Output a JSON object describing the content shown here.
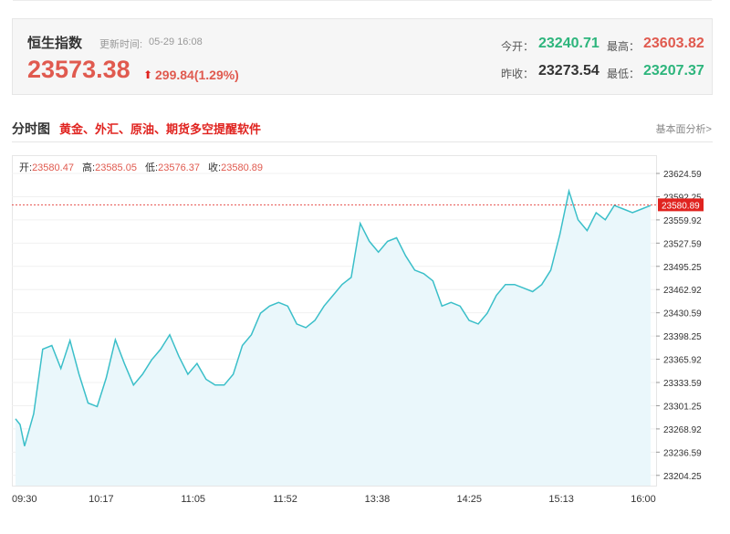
{
  "index": {
    "name": "恒生指数",
    "update_label": "更新时间:",
    "update_time": "05-29 16:08",
    "price": "23573.38",
    "change": "299.84(1.29%)",
    "stats": {
      "open_label": "今开：",
      "open": "23240.71",
      "high_label": "最高：",
      "high": "23603.82",
      "prev_close_label": "昨收：",
      "prev_close": "23273.54",
      "low_label": "最低：",
      "low": "23207.37"
    }
  },
  "section": {
    "title": "分时图",
    "promo": "黄金、外汇、原油、期货多空提醒软件",
    "fundamental_link": "基本面分析>"
  },
  "ohlc": {
    "open_label": "开:",
    "open": "23580.47",
    "high_label": "高:",
    "high": "23585.05",
    "low_label": "低:",
    "low": "23576.37",
    "close_label": "收:",
    "close": "23580.89"
  },
  "colors": {
    "up": "#e05a4f",
    "down": "#2db57c",
    "line": "#3bbfc9",
    "fill": "#eaf7fb",
    "ref_line": "#e0231f"
  },
  "chart_data": {
    "type": "area",
    "x_ticks": [
      "09:30",
      "10:17",
      "11:05",
      "11:52",
      "13:38",
      "14:25",
      "15:13",
      "16:00"
    ],
    "y_ticks": [
      "23624.59",
      "23592.25",
      "23559.92",
      "23527.59",
      "23495.25",
      "23462.92",
      "23430.59",
      "23398.25",
      "23365.92",
      "23333.59",
      "23301.25",
      "23268.92",
      "23236.59",
      "23204.25"
    ],
    "ylim": [
      23190,
      23650
    ],
    "current_value": 23580.89,
    "current_label": "23580.89",
    "series": [
      {
        "x": [
          0,
          0.5,
          1,
          2,
          3,
          4,
          5,
          6,
          7,
          8,
          9,
          10,
          11,
          12,
          13,
          14,
          15,
          16,
          17,
          18,
          19,
          20,
          21,
          22,
          23,
          24,
          25,
          26,
          27,
          28,
          29,
          30,
          31,
          32,
          33,
          34,
          35,
          36,
          37,
          38,
          39,
          40,
          41,
          42,
          43,
          44,
          45,
          46,
          47,
          48,
          49,
          50,
          51,
          52,
          53,
          54,
          55,
          56,
          57,
          58,
          59,
          60,
          61,
          62,
          63,
          64,
          65,
          66,
          67,
          68,
          69,
          70
        ],
        "y": [
          23283,
          23275,
          23245,
          23290,
          23380,
          23385,
          23353,
          23392,
          23345,
          23305,
          23300,
          23340,
          23393,
          23360,
          23330,
          23345,
          23365,
          23380,
          23400,
          23370,
          23345,
          23360,
          23338,
          23330,
          23330,
          23345,
          23385,
          23400,
          23430,
          23440,
          23445,
          23440,
          23415,
          23410,
          23420,
          23440,
          23455,
          23470,
          23480,
          23555,
          23530,
          23515,
          23530,
          23535,
          23510,
          23490,
          23485,
          23475,
          23440,
          23445,
          23440,
          23420,
          23415,
          23430,
          23455,
          23470,
          23470,
          23465,
          23460,
          23470,
          23490,
          23540,
          23600,
          23560,
          23545,
          23570,
          23560,
          23580,
          23575,
          23570,
          23575,
          23580
        ]
      }
    ]
  }
}
